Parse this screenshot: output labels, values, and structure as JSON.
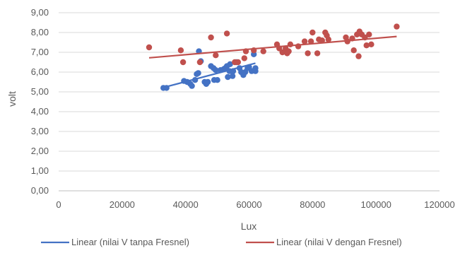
{
  "chart_data": {
    "type": "scatter",
    "xlabel": "Lux",
    "ylabel": "volt",
    "xlim": [
      0,
      120000
    ],
    "ylim": [
      0,
      9
    ],
    "x_ticks": [
      0,
      20000,
      40000,
      60000,
      80000,
      100000,
      120000
    ],
    "x_tick_labels": [
      "0",
      "20000",
      "40000",
      "60000",
      "80000",
      "100000",
      "120000"
    ],
    "y_ticks": [
      0,
      1,
      2,
      3,
      4,
      5,
      6,
      7,
      8,
      9
    ],
    "y_tick_labels": [
      "0,00",
      "1,00",
      "2,00",
      "3,00",
      "4,00",
      "5,00",
      "6,00",
      "7,00",
      "8,00",
      "9,00"
    ],
    "grid": "horizontal",
    "legend_position": "bottom",
    "series": [
      {
        "color": "#4472c4",
        "points": [
          [
            33000,
            5.2
          ],
          [
            34000,
            5.2
          ],
          [
            39500,
            5.55
          ],
          [
            40500,
            5.5
          ],
          [
            41500,
            5.4
          ],
          [
            42000,
            5.3
          ],
          [
            43000,
            5.6
          ],
          [
            43500,
            5.9
          ],
          [
            44000,
            5.95
          ],
          [
            44200,
            7.05
          ],
          [
            44800,
            6.55
          ],
          [
            46000,
            5.5
          ],
          [
            46500,
            5.4
          ],
          [
            47000,
            5.5
          ],
          [
            48000,
            6.3
          ],
          [
            48800,
            6.2
          ],
          [
            49000,
            5.6
          ],
          [
            49500,
            6.1
          ],
          [
            50000,
            5.6
          ],
          [
            51000,
            6.1
          ],
          [
            52000,
            6.15
          ],
          [
            52500,
            6.2
          ],
          [
            53000,
            6.3
          ],
          [
            53300,
            5.75
          ],
          [
            53800,
            6.05
          ],
          [
            54000,
            6.4
          ],
          [
            54800,
            5.8
          ],
          [
            55000,
            6.05
          ],
          [
            56000,
            6.5
          ],
          [
            57000,
            6.2
          ],
          [
            57500,
            6.0
          ],
          [
            58200,
            5.85
          ],
          [
            58800,
            6.0
          ],
          [
            59500,
            6.2
          ],
          [
            60000,
            6.25
          ],
          [
            60800,
            6.05
          ],
          [
            61500,
            6.9
          ],
          [
            62000,
            6.2
          ],
          [
            62000,
            6.05
          ]
        ]
      },
      {
        "color": "#c0504d",
        "points": [
          [
            28500,
            7.25
          ],
          [
            38500,
            7.1
          ],
          [
            39200,
            6.5
          ],
          [
            44500,
            6.5
          ],
          [
            48000,
            7.75
          ],
          [
            49500,
            6.85
          ],
          [
            53000,
            7.95
          ],
          [
            55500,
            6.5
          ],
          [
            56500,
            6.5
          ],
          [
            58500,
            6.7
          ],
          [
            59000,
            7.05
          ],
          [
            61500,
            7.1
          ],
          [
            64500,
            7.05
          ],
          [
            68800,
            7.4
          ],
          [
            69500,
            7.2
          ],
          [
            70500,
            7.0
          ],
          [
            71500,
            7.2
          ],
          [
            72000,
            6.95
          ],
          [
            72500,
            7.05
          ],
          [
            73000,
            7.4
          ],
          [
            75500,
            7.3
          ],
          [
            77500,
            7.55
          ],
          [
            78500,
            6.95
          ],
          [
            79500,
            7.55
          ],
          [
            80000,
            8.0
          ],
          [
            81500,
            6.95
          ],
          [
            82000,
            7.65
          ],
          [
            83000,
            7.6
          ],
          [
            84000,
            8.0
          ],
          [
            84500,
            7.85
          ],
          [
            85000,
            7.65
          ],
          [
            90500,
            7.75
          ],
          [
            91000,
            7.55
          ],
          [
            92500,
            7.7
          ],
          [
            93000,
            7.1
          ],
          [
            94000,
            7.9
          ],
          [
            94500,
            6.8
          ],
          [
            94800,
            8.05
          ],
          [
            95500,
            7.9
          ],
          [
            96500,
            7.75
          ],
          [
            97000,
            7.35
          ],
          [
            97800,
            7.9
          ],
          [
            98500,
            7.4
          ],
          [
            106500,
            8.3
          ]
        ]
      }
    ],
    "trendlines": [
      {
        "name": "Linear (nilai V tanpa Fresnel)",
        "color": "#4472c4",
        "x": [
          33000,
          62000
        ],
        "y": [
          5.22,
          6.45
        ]
      },
      {
        "name": "Linear (nilai V dengan Fresnel)",
        "color": "#c0504d",
        "x": [
          28500,
          106500
        ],
        "y": [
          6.72,
          7.8
        ]
      }
    ]
  }
}
